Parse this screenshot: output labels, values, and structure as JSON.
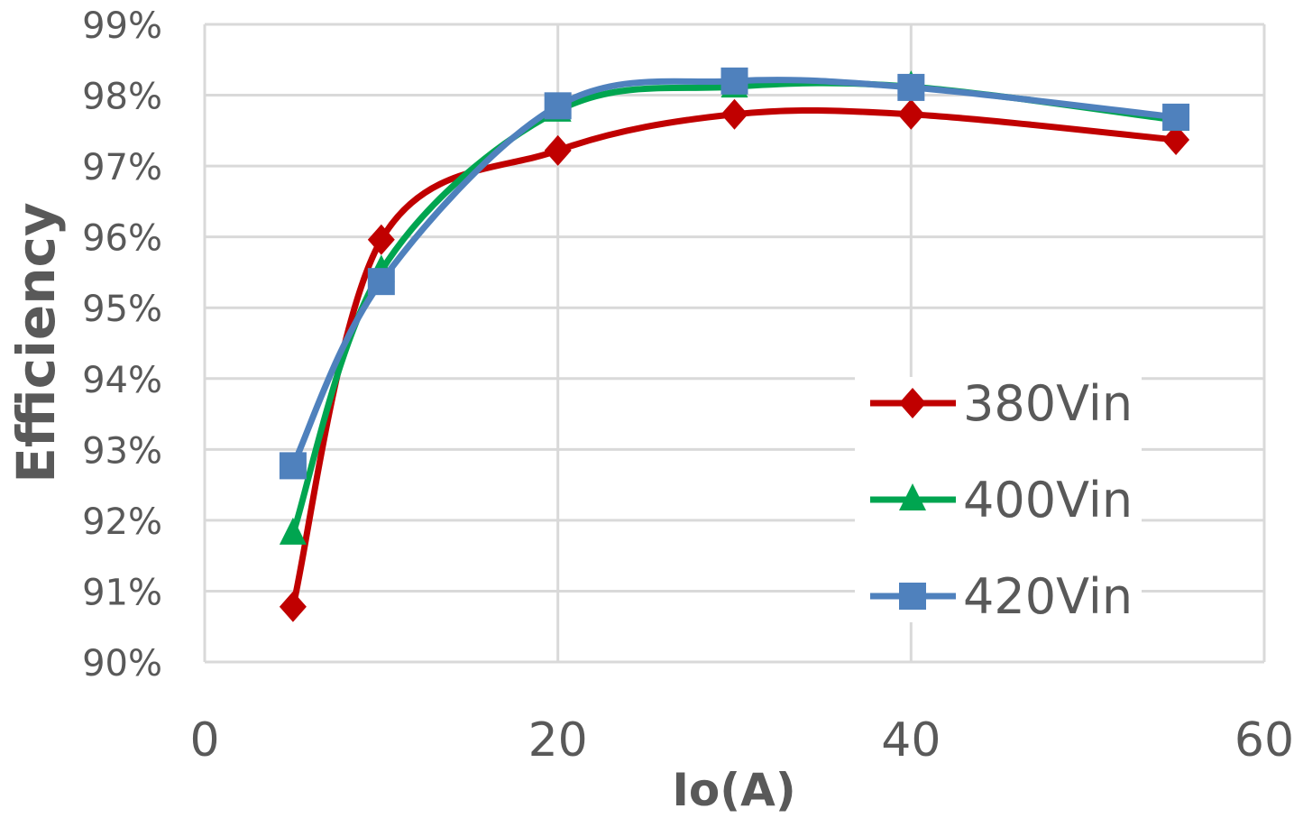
{
  "chart_data": {
    "type": "line",
    "title": "",
    "xlabel": "Io(A)",
    "ylabel": "Efficiency",
    "xlim": [
      0,
      60
    ],
    "ylim": [
      90,
      99
    ],
    "x_ticks": [
      "0",
      "20",
      "40",
      "60"
    ],
    "y_ticks": [
      "90%",
      "91%",
      "92%",
      "93%",
      "94%",
      "95%",
      "96%",
      "97%",
      "98%",
      "99%"
    ],
    "grid": true,
    "smooth": true,
    "legend_position": "bottom-right",
    "x": [
      5,
      10,
      20,
      30,
      40,
      55
    ],
    "series": [
      {
        "name": "380Vin",
        "color": "#c00000",
        "marker": "diamond",
        "values": [
          90.78,
          95.96,
          97.22,
          97.73,
          97.73,
          97.37
        ]
      },
      {
        "name": "400Vin",
        "color": "#00a550",
        "marker": "triangle",
        "values": [
          91.81,
          95.52,
          97.78,
          98.12,
          98.12,
          97.65
        ]
      },
      {
        "name": "420Vin",
        "color": "#4f81bd",
        "marker": "square",
        "values": [
          92.77,
          95.37,
          97.85,
          98.2,
          98.11,
          97.69
        ]
      }
    ]
  }
}
